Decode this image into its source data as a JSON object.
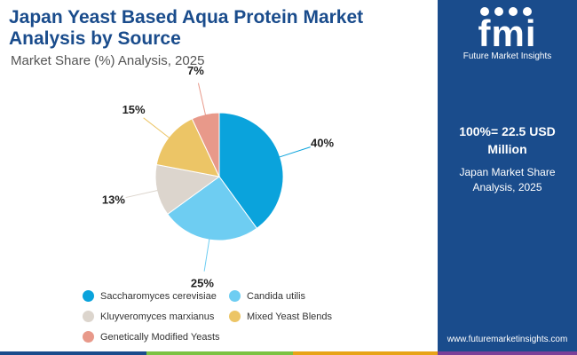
{
  "header": {
    "title": "Japan Yeast Based Aqua Protein Market Analysis by Source",
    "subtitle": "Market Share (%) Analysis, 2025"
  },
  "sidebar": {
    "brand_logo": "fmi",
    "brand_name": "Future Market Insights",
    "total_value": "100%= 22.5 USD Million",
    "total_label": "Japan Market Share Analysis, 2025",
    "website": "www.futuremarketinsights.com",
    "background_color": "#1a4c8c"
  },
  "chart_data": {
    "type": "pie",
    "categories": [
      "Saccharomyces cerevisiae",
      "Candida utilis",
      "Kluyveromyces marxianus",
      "Mixed Yeast Blends",
      "Genetically Modified Yeasts"
    ],
    "values": [
      40,
      25,
      13,
      15,
      7
    ],
    "labels": [
      "40%",
      "25%",
      "13%",
      "15%",
      "7%"
    ],
    "colors": [
      "#0aa3dc",
      "#6ecdf2",
      "#dcd5cd",
      "#ecc566",
      "#e8998a"
    ],
    "legend_position": "bottom"
  },
  "bottom_bar_colors": [
    "#1a4c8c",
    "#7cc242",
    "#e8a317",
    "#7b3f98"
  ]
}
